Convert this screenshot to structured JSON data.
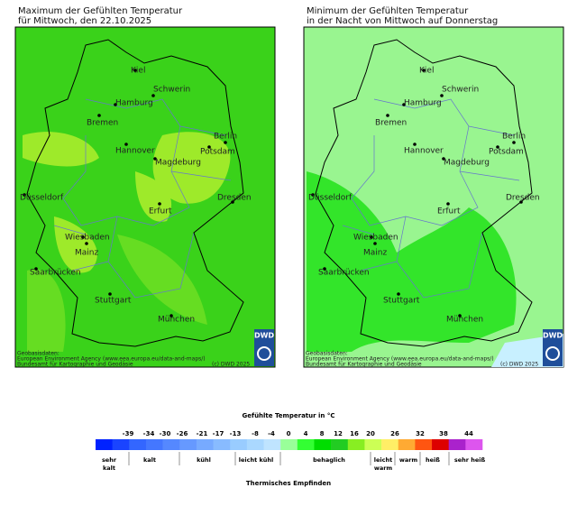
{
  "maps": [
    {
      "title": [
        "Maximum der Gefühlten Temperatur",
        "für Mittwoch, den 22.10.2025"
      ]
    },
    {
      "title": [
        "Minimum der Gefühlten Temperatur",
        "in der Nacht von Mittwoch auf Donnerstag"
      ]
    }
  ],
  "cities": [
    "Kiel",
    "Schwerin",
    "Hamburg",
    "Bremen",
    "Berlin",
    "Hannover",
    "Potsdam",
    "Magdeburg",
    "Düsseldorf",
    "Dresden",
    "Erfurt",
    "Wiesbaden",
    "Mainz",
    "Saarbrücken",
    "Stuttgart",
    "München"
  ],
  "source": [
    "Geobasisdaten:",
    "European Environment Agency (www.eea.europa.eu/data-and-maps/)",
    "Bundesamt für Kartographie und Geodäsie"
  ],
  "copyright": "(c) DWD 2025",
  "logo": "DWD",
  "legend": {
    "title": "Gefühlte Temperatur in °C",
    "ticks": [
      -39,
      -34,
      -30,
      -26,
      -21,
      -17,
      -13,
      -8,
      -4,
      0,
      4,
      8,
      12,
      16,
      20,
      26,
      32,
      38,
      44
    ],
    "categories": [
      [
        "sehr",
        "kalt"
      ],
      [
        "kalt"
      ],
      [
        "kühl"
      ],
      [
        "leicht kühl"
      ],
      [
        "behaglich"
      ],
      [
        "leicht",
        "warm"
      ],
      [
        "warm"
      ],
      [
        "heiß"
      ],
      [
        "sehr heiß"
      ]
    ],
    "footer": "Thermisches Empfinden"
  }
}
